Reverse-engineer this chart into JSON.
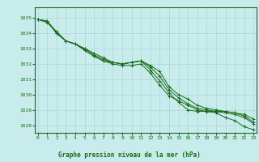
{
  "title": "Graphe pression niveau de la mer (hPa)",
  "background_color": "#c8ecec",
  "plot_background": "#c8ecec",
  "grid_color": "#afd4d4",
  "line_color": "#1a6b1a",
  "text_color": "#1a6b1a",
  "xlim": [
    -0.3,
    23.3
  ],
  "ylim": [
    1027.5,
    1035.7
  ],
  "yticks": [
    1028,
    1029,
    1030,
    1031,
    1032,
    1033,
    1034,
    1035
  ],
  "xticks": [
    0,
    1,
    2,
    3,
    4,
    5,
    6,
    7,
    8,
    9,
    10,
    11,
    12,
    13,
    14,
    15,
    16,
    17,
    18,
    19,
    20,
    21,
    22,
    23
  ],
  "series": [
    [
      1034.9,
      1034.8,
      1034.0,
      1033.5,
      1033.3,
      1032.9,
      1032.5,
      1032.2,
      1032.0,
      1031.9,
      1031.9,
      1032.0,
      1031.4,
      1030.6,
      1029.9,
      1029.6,
      1029.3,
      1029.0,
      1028.9,
      1028.8,
      1028.5,
      1028.3,
      1027.9,
      1027.7
    ],
    [
      1034.9,
      1034.8,
      1034.0,
      1033.5,
      1033.3,
      1032.9,
      1032.5,
      1032.2,
      1032.1,
      1032.0,
      1032.1,
      1032.2,
      1031.6,
      1030.9,
      1030.1,
      1029.5,
      1029.0,
      1028.9,
      1028.9,
      1028.9,
      1028.8,
      1028.7,
      1028.5,
      1028.1
    ],
    [
      1034.9,
      1034.8,
      1034.1,
      1033.5,
      1033.3,
      1033.0,
      1032.6,
      1032.3,
      1032.1,
      1032.0,
      1032.1,
      1032.2,
      1031.8,
      1031.2,
      1030.3,
      1029.8,
      1029.4,
      1029.1,
      1029.0,
      1028.9,
      1028.9,
      1028.8,
      1028.6,
      1028.2
    ],
    [
      1034.9,
      1034.7,
      1034.1,
      1033.5,
      1033.3,
      1033.0,
      1032.7,
      1032.4,
      1032.1,
      1032.0,
      1032.1,
      1032.2,
      1031.9,
      1031.5,
      1030.5,
      1030.0,
      1029.7,
      1029.3,
      1029.1,
      1029.0,
      1028.9,
      1028.8,
      1028.7,
      1028.4
    ]
  ]
}
